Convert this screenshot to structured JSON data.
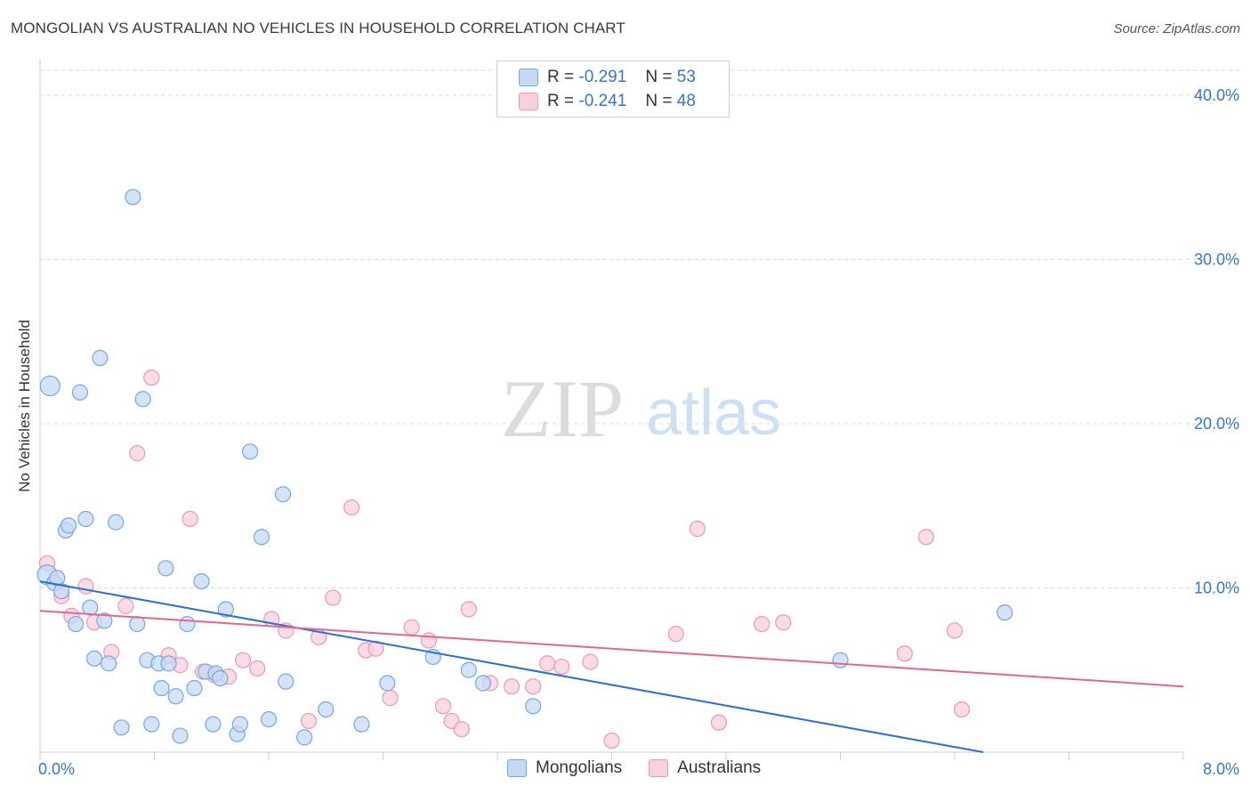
{
  "title": "MONGOLIAN VS AUSTRALIAN NO VEHICLES IN HOUSEHOLD CORRELATION CHART",
  "source": "Source: ZipAtlas.com",
  "watermark": {
    "zip": "ZIP",
    "atlas": "atlas"
  },
  "colors": {
    "blue_fill": "#c5d9f4",
    "blue_stroke": "#7aa6e0",
    "blue_line": "#2a6fd1",
    "pink_fill": "#f9d0de",
    "pink_stroke": "#e89ab4",
    "pink_line": "#e2678f",
    "tick_text": "#3b73c9",
    "grid": "#d8d8d8"
  },
  "stats": [
    {
      "r_label": "R =",
      "r_value": "-0.291",
      "n_label": "N =",
      "n_value": "53",
      "series": "Mongolians"
    },
    {
      "r_label": "R =",
      "r_value": "-0.241",
      "n_label": "N =",
      "n_value": "48",
      "series": "Australians"
    }
  ],
  "legend": [
    {
      "label": "Mongolians"
    },
    {
      "label": "Australians"
    }
  ],
  "chart_data": {
    "type": "scatter",
    "title": "MONGOLIAN VS AUSTRALIAN NO VEHICLES IN HOUSEHOLD CORRELATION CHART",
    "xlabel": "",
    "ylabel": "No Vehicles in Household",
    "xlim": [
      0,
      8
    ],
    "ylim": [
      0,
      42
    ],
    "x_tick_labels": [
      {
        "value": 0,
        "label": "0.0%"
      },
      {
        "value": 8,
        "label": "8.0%"
      }
    ],
    "y_tick_labels": [
      {
        "value": 10,
        "label": "10.0%"
      },
      {
        "value": 20,
        "label": "20.0%"
      },
      {
        "value": 30,
        "label": "30.0%"
      },
      {
        "value": 40,
        "label": "40.0%"
      }
    ],
    "series": [
      {
        "name": "Mongolians",
        "points": [
          [
            0.05,
            10.8
          ],
          [
            0.07,
            22.3
          ],
          [
            0.1,
            10.3
          ],
          [
            0.12,
            10.6
          ],
          [
            0.15,
            9.8
          ],
          [
            0.18,
            13.5
          ],
          [
            0.2,
            13.8
          ],
          [
            0.25,
            7.8
          ],
          [
            0.28,
            21.9
          ],
          [
            0.32,
            14.2
          ],
          [
            0.35,
            8.8
          ],
          [
            0.38,
            5.7
          ],
          [
            0.42,
            24.0
          ],
          [
            0.45,
            8.0
          ],
          [
            0.48,
            5.4
          ],
          [
            0.53,
            14.0
          ],
          [
            0.57,
            1.5
          ],
          [
            0.65,
            33.8
          ],
          [
            0.68,
            7.8
          ],
          [
            0.72,
            21.5
          ],
          [
            0.75,
            5.6
          ],
          [
            0.78,
            1.7
          ],
          [
            0.83,
            5.4
          ],
          [
            0.85,
            3.9
          ],
          [
            0.88,
            11.2
          ],
          [
            0.9,
            5.4
          ],
          [
            0.95,
            3.4
          ],
          [
            0.98,
            1.0
          ],
          [
            1.03,
            7.8
          ],
          [
            1.08,
            3.9
          ],
          [
            1.13,
            10.4
          ],
          [
            1.16,
            4.9
          ],
          [
            1.21,
            1.7
          ],
          [
            1.23,
            4.8
          ],
          [
            1.26,
            4.5
          ],
          [
            1.3,
            8.7
          ],
          [
            1.38,
            1.1
          ],
          [
            1.4,
            1.7
          ],
          [
            1.47,
            18.3
          ],
          [
            1.55,
            13.1
          ],
          [
            1.6,
            2.0
          ],
          [
            1.7,
            15.7
          ],
          [
            1.72,
            4.3
          ],
          [
            1.85,
            0.9
          ],
          [
            2.0,
            2.6
          ],
          [
            2.25,
            1.7
          ],
          [
            2.43,
            4.2
          ],
          [
            2.75,
            5.8
          ],
          [
            3.0,
            5.0
          ],
          [
            3.1,
            4.2
          ],
          [
            3.45,
            2.8
          ],
          [
            5.6,
            5.6
          ],
          [
            6.75,
            8.5
          ]
        ],
        "radii": {
          "0.07,22.3": "large",
          "0.05,10.8": "large"
        },
        "trend": {
          "x0": 0,
          "y0": 10.4,
          "x1": 6.6,
          "y1": 0
        }
      },
      {
        "name": "Australians",
        "points": [
          [
            0.05,
            11.5
          ],
          [
            0.15,
            9.5
          ],
          [
            0.22,
            8.3
          ],
          [
            0.32,
            10.1
          ],
          [
            0.38,
            7.9
          ],
          [
            0.5,
            6.1
          ],
          [
            0.6,
            8.9
          ],
          [
            0.68,
            18.2
          ],
          [
            0.78,
            22.8
          ],
          [
            0.9,
            5.9
          ],
          [
            0.98,
            5.3
          ],
          [
            1.05,
            14.2
          ],
          [
            1.14,
            4.9
          ],
          [
            1.22,
            4.7
          ],
          [
            1.32,
            4.6
          ],
          [
            1.42,
            5.6
          ],
          [
            1.52,
            5.1
          ],
          [
            1.62,
            8.1
          ],
          [
            1.72,
            7.4
          ],
          [
            1.88,
            1.9
          ],
          [
            1.95,
            7.0
          ],
          [
            2.05,
            9.4
          ],
          [
            2.18,
            14.9
          ],
          [
            2.28,
            6.2
          ],
          [
            2.35,
            6.3
          ],
          [
            2.45,
            3.3
          ],
          [
            2.6,
            7.6
          ],
          [
            2.72,
            6.8
          ],
          [
            2.82,
            2.8
          ],
          [
            2.88,
            1.9
          ],
          [
            2.95,
            1.4
          ],
          [
            3.0,
            8.7
          ],
          [
            3.15,
            4.2
          ],
          [
            3.3,
            4.0
          ],
          [
            3.45,
            4.0
          ],
          [
            3.55,
            5.4
          ],
          [
            3.65,
            5.2
          ],
          [
            3.85,
            5.5
          ],
          [
            4.0,
            0.7
          ],
          [
            4.45,
            7.2
          ],
          [
            4.6,
            13.6
          ],
          [
            4.75,
            1.8
          ],
          [
            5.05,
            7.8
          ],
          [
            5.2,
            7.9
          ],
          [
            6.05,
            6.0
          ],
          [
            6.2,
            13.1
          ],
          [
            6.4,
            7.4
          ],
          [
            6.45,
            2.6
          ]
        ],
        "trend": {
          "x0": 0,
          "y0": 8.6,
          "x1": 8,
          "y1": 4.0
        }
      }
    ]
  }
}
